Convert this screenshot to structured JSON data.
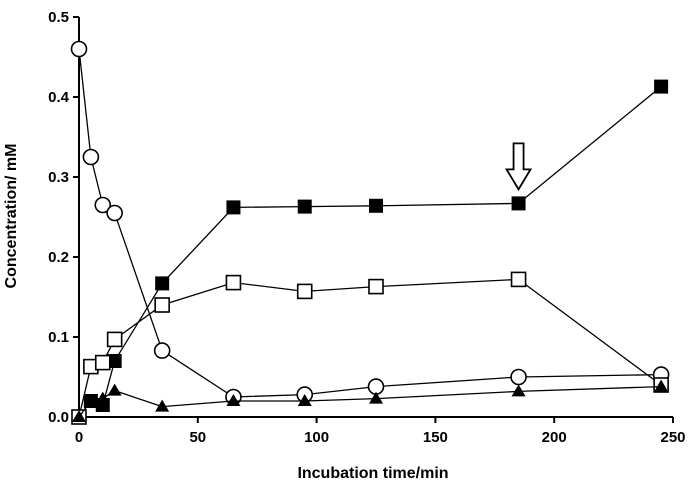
{
  "chart_data": {
    "type": "scatter",
    "xlabel": "Incubation time/min",
    "ylabel": "Concentration/ mM",
    "xlim": [
      0,
      250
    ],
    "ylim": [
      0,
      0.5
    ],
    "xticks": [
      0,
      50,
      100,
      150,
      200,
      250
    ],
    "yticks": [
      0.0,
      0.1,
      0.2,
      0.3,
      0.4,
      0.5
    ],
    "xtick_labels": [
      "0",
      "50",
      "100",
      "150",
      "200",
      "250"
    ],
    "ytick_labels": [
      "0.0",
      "0.1",
      "0.2",
      "0.3",
      "0.4",
      "0.5"
    ],
    "grid": false,
    "legend": "none",
    "series": [
      {
        "marker": "open-circle",
        "x": [
          0,
          5,
          10,
          15,
          35,
          65,
          95,
          125,
          185,
          245
        ],
        "y": [
          0.46,
          0.325,
          0.265,
          0.255,
          0.083,
          0.025,
          0.028,
          0.038,
          0.05,
          0.053
        ]
      },
      {
        "marker": "filled-square",
        "x": [
          0,
          5,
          10,
          15,
          35,
          65,
          95,
          125,
          185,
          245
        ],
        "y": [
          0.0,
          0.02,
          0.015,
          0.07,
          0.167,
          0.262,
          0.263,
          0.264,
          0.267,
          0.413
        ]
      },
      {
        "marker": "open-square",
        "x": [
          0,
          5,
          10,
          15,
          35,
          65,
          95,
          125,
          185,
          245
        ],
        "y": [
          0.0,
          0.063,
          0.068,
          0.097,
          0.14,
          0.168,
          0.157,
          0.163,
          0.172,
          0.04
        ]
      },
      {
        "marker": "filled-triangle",
        "x": [
          0,
          5,
          10,
          15,
          35,
          65,
          95,
          125,
          185,
          245
        ],
        "y": [
          0.0,
          0.02,
          0.023,
          0.033,
          0.013,
          0.02,
          0.02,
          0.023,
          0.032,
          0.038
        ]
      }
    ],
    "annotations": [
      {
        "kind": "down-arrow",
        "x": 185,
        "y": 0.267
      }
    ]
  }
}
